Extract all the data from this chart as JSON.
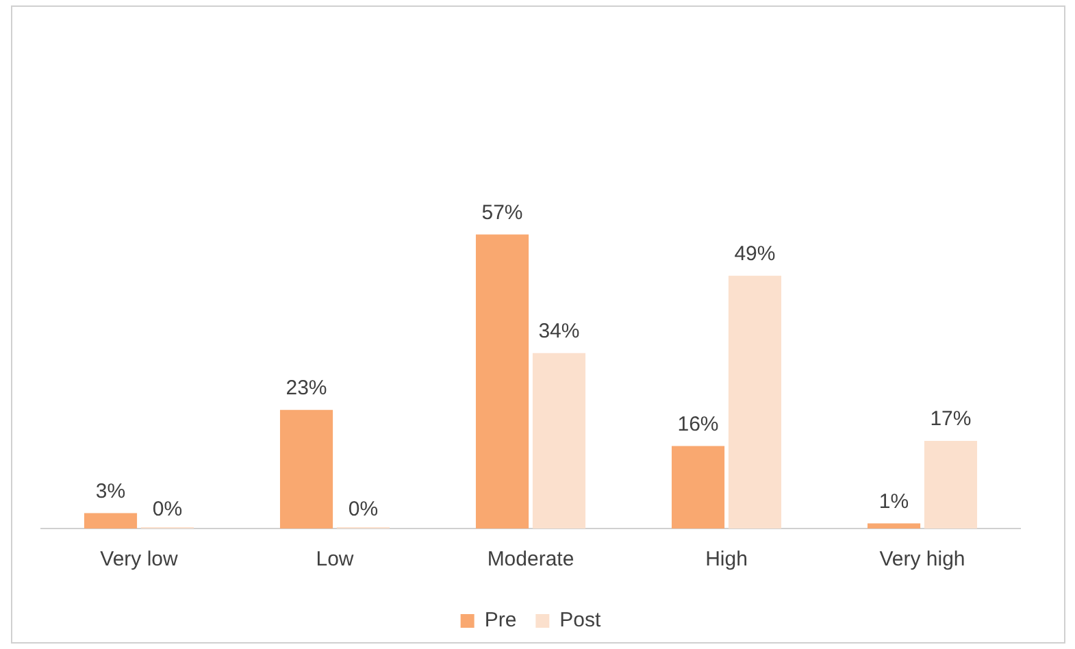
{
  "chart_data": {
    "type": "bar",
    "categories": [
      "Very low",
      "Low",
      "Moderate",
      "High",
      "Very high"
    ],
    "series": [
      {
        "name": "Pre",
        "color": "#f9a870",
        "values": [
          3,
          23,
          57,
          16,
          1
        ],
        "value_labels": [
          "3%",
          "23%",
          "57%",
          "16%",
          "1%"
        ]
      },
      {
        "name": "Post",
        "color": "#fbe0cd",
        "values": [
          0,
          0,
          34,
          49,
          17
        ],
        "value_labels": [
          "0%",
          "0%",
          "34%",
          "49%",
          "17%"
        ]
      }
    ],
    "legend": "bottom",
    "grid": false,
    "tick_labels": "x"
  }
}
